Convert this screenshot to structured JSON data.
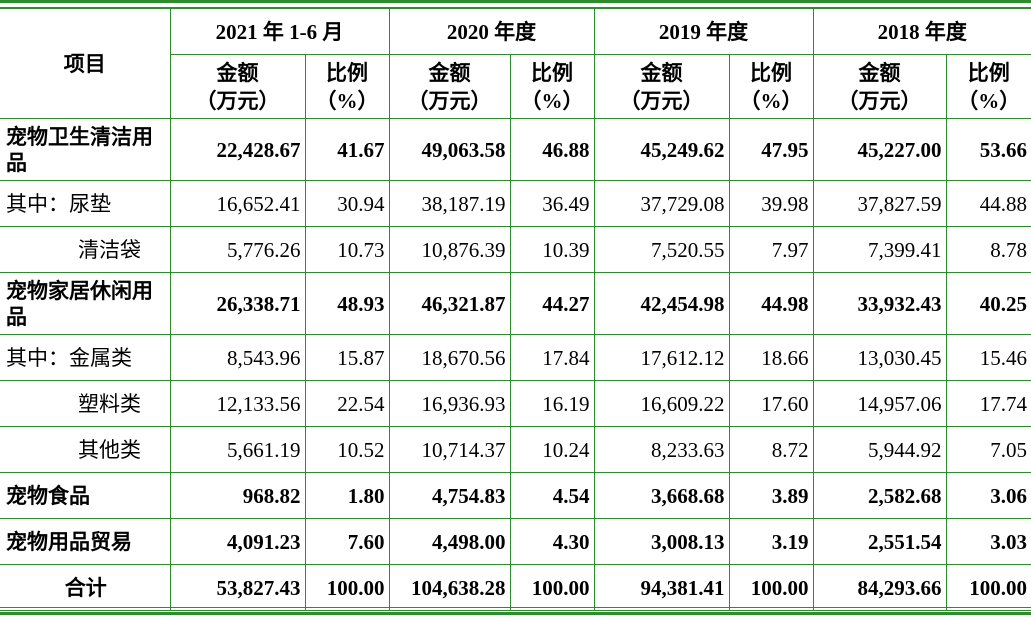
{
  "header": {
    "item": "项目",
    "periods": [
      "2021 年 1-6 月",
      "2020 年度",
      "2019 年度",
      "2018 年度"
    ],
    "amount_label": "金额",
    "amount_unit": "（万元）",
    "ratio_label": "比例",
    "ratio_unit": "（%）"
  },
  "rows": [
    {
      "label": "宠物卫生清洁用品",
      "v": [
        "22,428.67",
        "41.67",
        "49,063.58",
        "46.88",
        "45,249.62",
        "47.95",
        "45,227.00",
        "53.66"
      ]
    },
    {
      "label": "其中：尿垫",
      "v": [
        "16,652.41",
        "30.94",
        "38,187.19",
        "36.49",
        "37,729.08",
        "39.98",
        "37,827.59",
        "44.88"
      ]
    },
    {
      "label": "清洁袋",
      "v": [
        "5,776.26",
        "10.73",
        "10,876.39",
        "10.39",
        "7,520.55",
        "7.97",
        "7,399.41",
        "8.78"
      ]
    },
    {
      "label": "宠物家居休闲用品",
      "v": [
        "26,338.71",
        "48.93",
        "46,321.87",
        "44.27",
        "42,454.98",
        "44.98",
        "33,932.43",
        "40.25"
      ]
    },
    {
      "label": "其中：金属类",
      "v": [
        "8,543.96",
        "15.87",
        "18,670.56",
        "17.84",
        "17,612.12",
        "18.66",
        "13,030.45",
        "15.46"
      ]
    },
    {
      "label": "塑料类",
      "v": [
        "12,133.56",
        "22.54",
        "16,936.93",
        "16.19",
        "16,609.22",
        "17.60",
        "14,957.06",
        "17.74"
      ]
    },
    {
      "label": "其他类",
      "v": [
        "5,661.19",
        "10.52",
        "10,714.37",
        "10.24",
        "8,233.63",
        "8.72",
        "5,944.92",
        "7.05"
      ]
    },
    {
      "label": "宠物食品",
      "v": [
        "968.82",
        "1.80",
        "4,754.83",
        "4.54",
        "3,668.68",
        "3.89",
        "2,582.68",
        "3.06"
      ]
    },
    {
      "label": "宠物用品贸易",
      "v": [
        "4,091.23",
        "7.60",
        "4,498.00",
        "4.30",
        "3,008.13",
        "3.19",
        "2,551.54",
        "3.03"
      ]
    },
    {
      "label": "合计",
      "v": [
        "53,827.43",
        "100.00",
        "104,638.28",
        "100.00",
        "94,381.41",
        "100.00",
        "84,293.66",
        "100.00"
      ]
    }
  ]
}
